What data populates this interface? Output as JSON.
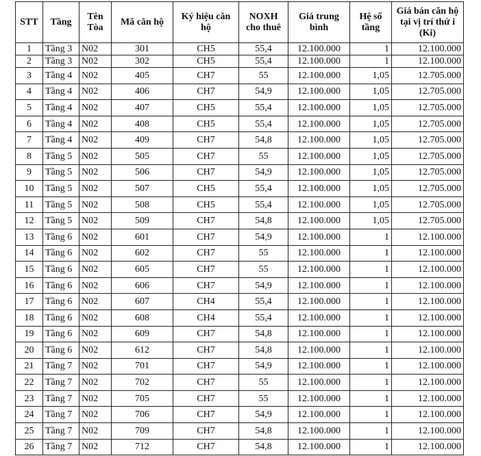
{
  "table": {
    "headers": [
      "STT",
      "Tầng",
      "Tên Tòa",
      "Mã căn hộ",
      "Ký hiệu căn hộ",
      "NOXH cho thuê",
      "Giá trung bình",
      "Hệ số tầng",
      "Giá bán căn hộ tại vị trí thứ i (Ki)"
    ],
    "rows": [
      [
        "1",
        "Tầng 3",
        "N02",
        "301",
        "CH5",
        "55,4",
        "12.100.000",
        "1",
        "12.100.000"
      ],
      [
        "2",
        "Tầng 3",
        "N02",
        "302",
        "CH5",
        "55,4",
        "12.100.000",
        "1",
        "12.100.000"
      ],
      [
        "3",
        "Tầng 4",
        "N02",
        "405",
        "CH7",
        "55",
        "12.100.000",
        "1,05",
        "12.705.000"
      ],
      [
        "4",
        "Tầng 4",
        "N02",
        "406",
        "CH7",
        "54,9",
        "12.100.000",
        "1,05",
        "12.705.000"
      ],
      [
        "5",
        "Tầng 4",
        "N02",
        "407",
        "CH5",
        "55,4",
        "12.100.000",
        "1,05",
        "12.705.000"
      ],
      [
        "6",
        "Tầng 4",
        "N02",
        "408",
        "CH5",
        "55,4",
        "12.100.000",
        "1,05",
        "12.705.000"
      ],
      [
        "7",
        "Tầng 4",
        "N02",
        "409",
        "CH7",
        "54,8",
        "12.100.000",
        "1,05",
        "12.705.000"
      ],
      [
        "8",
        "Tầng 5",
        "N02",
        "505",
        "CH7",
        "55",
        "12.100.000",
        "1,05",
        "12.705.000"
      ],
      [
        "9",
        "Tầng 5",
        "N02",
        "506",
        "CH7",
        "54,9",
        "12.100.000",
        "1,05",
        "12.705.000"
      ],
      [
        "10",
        "Tầng 5",
        "N02",
        "507",
        "CH5",
        "55,4",
        "12.100.000",
        "1,05",
        "12.705.000"
      ],
      [
        "11",
        "Tầng 5",
        "N02",
        "508",
        "CH5",
        "55,4",
        "12.100.000",
        "1,05",
        "12.705.000"
      ],
      [
        "12",
        "Tầng 5",
        "N02",
        "509",
        "CH7",
        "54,8",
        "12.100.000",
        "1,05",
        "12.705.000"
      ],
      [
        "13",
        "Tầng 6",
        "N02",
        "601",
        "CH7",
        "54,9",
        "12.100.000",
        "1",
        "12.100.000"
      ],
      [
        "14",
        "Tầng 6",
        "N02",
        "602",
        "CH7",
        "55",
        "12.100.000",
        "1",
        "12.100.000"
      ],
      [
        "15",
        "Tầng 6",
        "N02",
        "605",
        "CH7",
        "55",
        "12.100.000",
        "1",
        "12.100.000"
      ],
      [
        "16",
        "Tầng 6",
        "N02",
        "606",
        "CH7",
        "54,9",
        "12.100.000",
        "1",
        "12.100.000"
      ],
      [
        "17",
        "Tầng 6",
        "N02",
        "607",
        "CH4",
        "55,4",
        "12.100.000",
        "1",
        "12.100.000"
      ],
      [
        "18",
        "Tầng 6",
        "N02",
        "608",
        "CH4",
        "55,4",
        "12.100.000",
        "1",
        "12.100.000"
      ],
      [
        "19",
        "Tầng 6",
        "N02",
        "609",
        "CH7",
        "54,8",
        "12.100.000",
        "1",
        "12.100.000"
      ],
      [
        "20",
        "Tầng 6",
        "N02",
        "612",
        "CH7",
        "54,8",
        "12.100.000",
        "1",
        "12.100.000"
      ],
      [
        "21",
        "Tầng 7",
        "N02",
        "701",
        "CH7",
        "54,9",
        "12.100.000",
        "1",
        "12.100.000"
      ],
      [
        "22",
        "Tầng 7",
        "N02",
        "702",
        "CH7",
        "55",
        "12.100.000",
        "1",
        "12.100.000"
      ],
      [
        "23",
        "Tầng 7",
        "N02",
        "705",
        "CH7",
        "55",
        "12.100.000",
        "1",
        "12.100.000"
      ],
      [
        "24",
        "Tầng 7",
        "N02",
        "706",
        "CH7",
        "54,9",
        "12.100.000",
        "1",
        "12.100.000"
      ],
      [
        "25",
        "Tầng 7",
        "N02",
        "709",
        "CH7",
        "54,8",
        "12.100.000",
        "1",
        "12.100.000"
      ],
      [
        "26",
        "Tầng 7",
        "N02",
        "712",
        "CH7",
        "54,8",
        "12.100.000",
        "1",
        "12.100.000"
      ]
    ]
  }
}
